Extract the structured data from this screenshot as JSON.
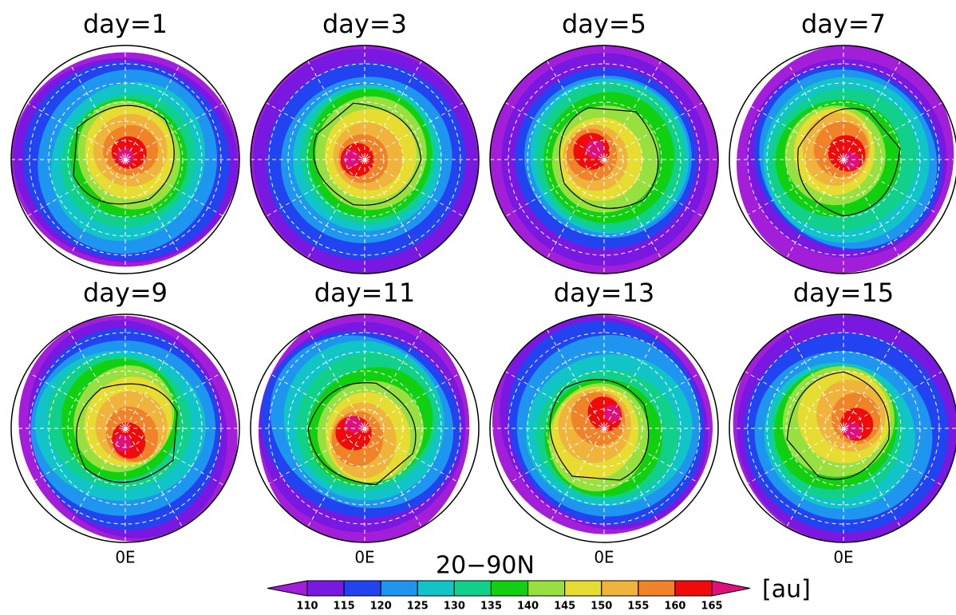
{
  "panels": [
    {
      "title": "day=1"
    },
    {
      "title": "day=3"
    },
    {
      "title": "day=5"
    },
    {
      "title": "day=7"
    },
    {
      "title": "day=9"
    },
    {
      "title": "day=11"
    },
    {
      "title": "day=13"
    },
    {
      "title": "day=15"
    }
  ],
  "lon_labels": [
    "0E",
    "0E",
    "0E",
    "0E"
  ],
  "region_label": "20−90N",
  "colorbar": {
    "ticks": [
      110,
      115,
      120,
      125,
      130,
      135,
      140,
      145,
      150,
      155,
      160,
      165
    ],
    "colors": [
      "#a21ed8",
      "#7818e0",
      "#2244f0",
      "#1e96f0",
      "#10c4c8",
      "#10d08a",
      "#10d010",
      "#98e040",
      "#e6dc32",
      "#f0b43c",
      "#f08228",
      "#f00a0a",
      "#e0107a"
    ],
    "unit": "[au]"
  }
}
